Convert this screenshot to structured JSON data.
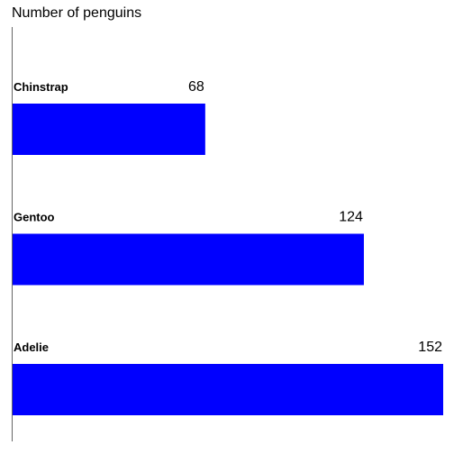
{
  "chart_data": {
    "type": "bar",
    "orientation": "horizontal",
    "title": "Number of penguins",
    "categories": [
      "Chinstrap",
      "Gentoo",
      "Adelie"
    ],
    "values": [
      68,
      124,
      152
    ],
    "xlim": [
      0,
      152
    ],
    "grid": false,
    "colors": {
      "bar": "#0000ff",
      "axis": "#666666",
      "text": "#000000"
    }
  }
}
